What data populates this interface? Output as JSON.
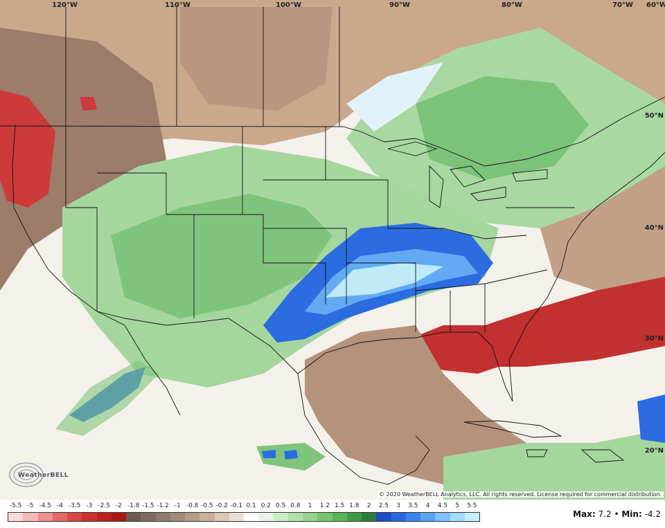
{
  "map": {
    "longitude_labels": [
      "120°W",
      "110°W",
      "100°W",
      "90°W",
      "80°W",
      "70°W",
      "60°W"
    ],
    "latitude_labels": [
      "50°N",
      "40°N",
      "30°N",
      "20°N"
    ],
    "copyright": "© 2020 WeatherBELL Analytics, LLC. All rights reserved. License required for commercial distribution.",
    "logo_text": "WeatherBELL"
  },
  "legend": {
    "ticks": [
      "-5.5",
      "-5",
      "-4.5",
      "-4",
      "-3.5",
      "-3",
      "-2.5",
      "-2",
      "-1.8",
      "-1.5",
      "-1.2",
      "-1",
      "-0.8",
      "-0.5",
      "-0.2",
      "-0.1",
      "0.1",
      "0.2",
      "0.5",
      "0.8",
      "1",
      "1.2",
      "1.5",
      "1.8",
      "2",
      "2.5",
      "3",
      "3.5",
      "4",
      "4.5",
      "5",
      "5.5"
    ],
    "colors": [
      "#fbdada",
      "#f6b8b8",
      "#ef9090",
      "#e46a6a",
      "#d94848",
      "#cc3030",
      "#bb2222",
      "#a81a1a",
      "#6e5a52",
      "#7e6a60",
      "#8e7a6e",
      "#a08a7a",
      "#b49c8a",
      "#c8b09c",
      "#dcc8b6",
      "#ece0d4",
      "#ffffff",
      "#e8f5e6",
      "#cdebc8",
      "#b2dfac",
      "#96d390",
      "#78c473",
      "#5cb35a",
      "#3f9a45",
      "#2e7c3a",
      "#1f4fc8",
      "#2868e0",
      "#3a86ec",
      "#58a4f2",
      "#7cc2f6",
      "#a2dcf8",
      "#c8eefa"
    ],
    "max_label": "Max:",
    "max_value": "7.2",
    "separator": "•",
    "min_label": "Min:",
    "min_value": "-4.2"
  }
}
